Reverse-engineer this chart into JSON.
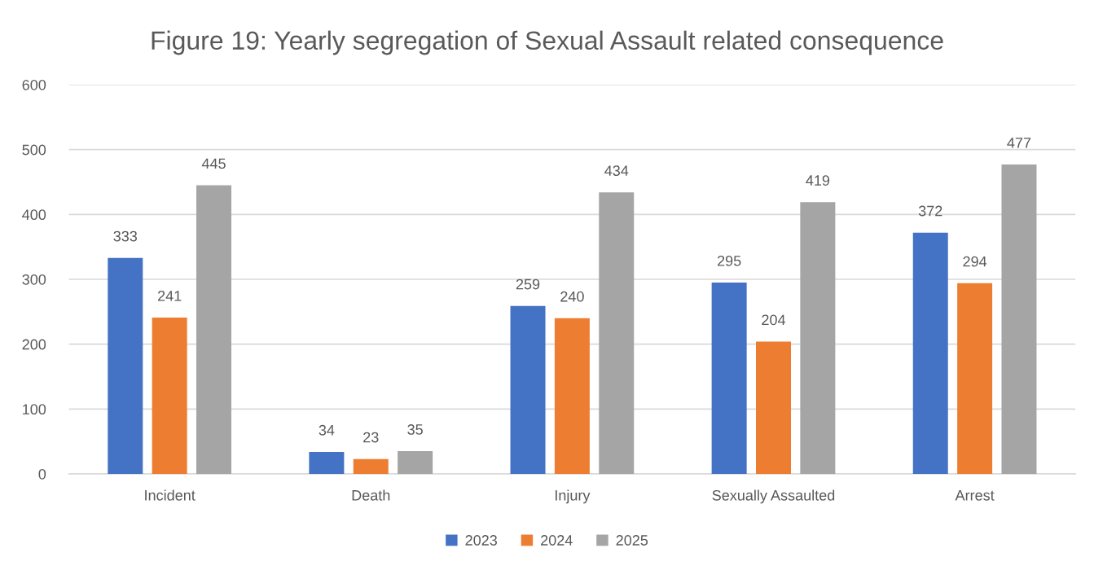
{
  "chart_data": {
    "type": "bar",
    "title": "Figure 19: Yearly segregation of Sexual Assault related consequence",
    "categories": [
      "Incident",
      "Death",
      "Injury",
      "Sexually Assaulted",
      "Arrest"
    ],
    "series": [
      {
        "name": "2023",
        "color": "#4472c4",
        "values": [
          333,
          34,
          259,
          295,
          372
        ]
      },
      {
        "name": "2024",
        "color": "#ed7d31",
        "values": [
          241,
          23,
          240,
          204,
          294
        ]
      },
      {
        "name": "2025",
        "color": "#a5a5a5",
        "values": [
          445,
          35,
          434,
          419,
          477
        ]
      }
    ],
    "ylim": [
      0,
      600
    ],
    "yticks": [
      0,
      100,
      200,
      300,
      400,
      500,
      600
    ],
    "grid": "y",
    "legend": "bottom",
    "data_labels": true
  }
}
